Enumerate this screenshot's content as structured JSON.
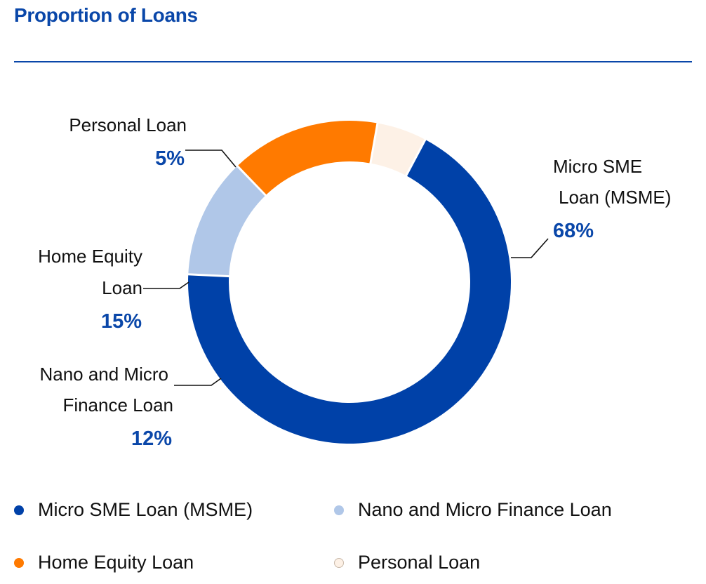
{
  "header": {
    "title": "Proportion of Loans"
  },
  "colors": {
    "accent": "#0a47a9",
    "slices": [
      "#0041a8",
      "#b0c7e8",
      "#ff7a00",
      "#fdf1e6"
    ],
    "personal_stroke": "#c9b9aa"
  },
  "chart_data": {
    "type": "pie",
    "variant": "donut",
    "title": "Proportion of Loans",
    "categories": [
      "Micro SME Loan (MSME)",
      "Nano and Micro Finance Loan",
      "Home Equity Loan",
      "Personal Loan"
    ],
    "values": [
      68,
      12,
      15,
      5
    ],
    "unit": "%",
    "data_labels": [
      {
        "lines": [
          "Micro SME",
          "Loan (MSME)"
        ],
        "pct": "68%"
      },
      {
        "lines": [
          "Nano and Micro",
          "Finance Loan"
        ],
        "pct": "12%"
      },
      {
        "lines": [
          "Home Equity",
          "Loan"
        ],
        "pct": "15%"
      },
      {
        "lines": [
          "Personal Loan"
        ],
        "pct": "5%"
      }
    ],
    "legend": {
      "position": "bottom",
      "items": [
        "Micro SME Loan (MSME)",
        "Nano and Micro Finance Loan",
        "Home Equity Loan",
        "Personal Loan"
      ]
    }
  }
}
